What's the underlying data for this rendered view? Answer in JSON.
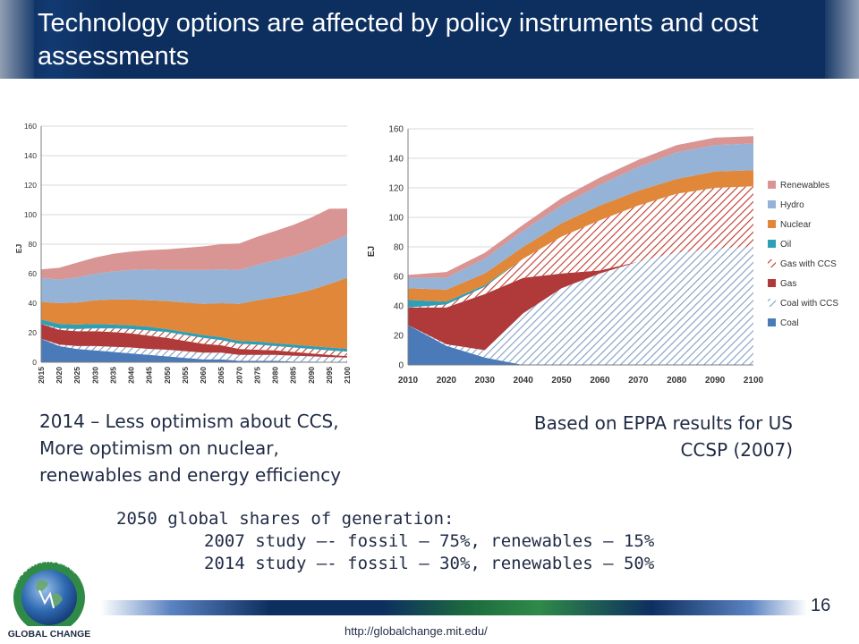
{
  "title": "Technology options are affected by policy instruments and cost assessments",
  "caption_left": [
    "2014 – Less optimism about CCS,",
    "More optimism on nuclear,",
    "renewables and energy efficiency"
  ],
  "caption_right": [
    "Based on EPPA results for US",
    "CCSP (2007)"
  ],
  "shares_heading": "2050 global shares of generation:",
  "shares_lines": [
    "2007 study –- fossil – 75%, renewables – 15%",
    "2014 study –- fossil – 30%, renewables – 50%"
  ],
  "page_number": "16",
  "footer_url": "http://globalchange.mit.edu/",
  "logo": {
    "top_text": "MIT JOINT PROGRAM",
    "bottom_text": "GLOBAL CHANGE"
  },
  "colors": {
    "title_bg": "#0d2f60",
    "Renewables": "#d99594",
    "Hydro": "#95b3d7",
    "Nuclear": "#e0873a",
    "Oil": "#2f9fb5",
    "Gas with CCS": "#c0392b",
    "Gas": "#b03a3a",
    "Coal with CCS": "#7f9ec4",
    "Coal": "#4a7ab8"
  },
  "chart_data": [
    {
      "type": "area",
      "stacked": true,
      "ylabel": "EJ",
      "ylim": [
        0,
        160
      ],
      "yticks": [
        0,
        20,
        40,
        60,
        80,
        100,
        120,
        140,
        160
      ],
      "x": [
        2015,
        2020,
        2025,
        2030,
        2035,
        2040,
        2045,
        2050,
        2055,
        2060,
        2065,
        2070,
        2075,
        2080,
        2085,
        2090,
        2095,
        2100
      ],
      "legend": "none",
      "series": [
        {
          "name": "Coal",
          "pattern": "solid",
          "color": "#4a7ab8",
          "values": [
            16,
            11,
            9,
            8,
            7,
            6,
            5,
            4,
            3,
            2,
            2,
            1,
            1,
            1,
            0.5,
            0.5,
            0.3,
            0.2
          ]
        },
        {
          "name": "Coal with CCS",
          "pattern": "hatched",
          "color": "#7f9ec4",
          "values": [
            0,
            1,
            2,
            3,
            3.5,
            4,
            4,
            4.5,
            4.5,
            4.5,
            4.5,
            4,
            4,
            4,
            4,
            3.5,
            3.2,
            3
          ]
        },
        {
          "name": "Gas",
          "pattern": "solid",
          "color": "#b03a3a",
          "values": [
            10,
            10,
            10,
            10,
            10,
            9.5,
            9,
            8,
            7,
            6,
            5,
            4,
            3.5,
            3,
            2.5,
            2,
            1.5,
            1
          ]
        },
        {
          "name": "Gas with CCS",
          "pattern": "hatched",
          "color": "#c0392b",
          "values": [
            0,
            1,
            1.5,
            2,
            2.5,
            3,
            3.5,
            4,
            4,
            4,
            3.5,
            3.5,
            3.5,
            3,
            3,
            3,
            3,
            3
          ]
        },
        {
          "name": "Oil",
          "pattern": "solid",
          "color": "#2f9fb5",
          "values": [
            3,
            3,
            3,
            3,
            2.5,
            2.5,
            2.5,
            2,
            2,
            2,
            2,
            2,
            2,
            2,
            2,
            2,
            2,
            2
          ]
        },
        {
          "name": "Nuclear",
          "pattern": "solid",
          "color": "#e0873a",
          "values": [
            12,
            14,
            15,
            16,
            17,
            17.5,
            18,
            19,
            20,
            21,
            23,
            25,
            28,
            31,
            34,
            38,
            43,
            48
          ]
        },
        {
          "name": "Hydro",
          "pattern": "solid",
          "color": "#95b3d7",
          "values": [
            16,
            16,
            17,
            18,
            19,
            20,
            21,
            21,
            22,
            23,
            23,
            23,
            24,
            25,
            26,
            27,
            28,
            29
          ]
        },
        {
          "name": "Renewables",
          "pattern": "solid",
          "color": "#d99594",
          "values": [
            6,
            8,
            10,
            11,
            12,
            12.5,
            13,
            14,
            15,
            16,
            17,
            18,
            19,
            20,
            21,
            22,
            23,
            18
          ]
        }
      ]
    },
    {
      "type": "area",
      "stacked": true,
      "ylabel": "EJ",
      "ylim": [
        0,
        160
      ],
      "yticks": [
        0,
        20,
        40,
        60,
        80,
        100,
        120,
        140,
        160
      ],
      "x": [
        2010,
        2020,
        2030,
        2040,
        2050,
        2060,
        2070,
        2080,
        2090,
        2100
      ],
      "legend": "right",
      "legend_order": [
        "Renewables",
        "Hydro",
        "Nuclear",
        "Oil",
        "Gas with CCS",
        "Gas",
        "Coal with CCS",
        "Coal"
      ],
      "series": [
        {
          "name": "Coal",
          "pattern": "solid",
          "color": "#4a7ab8",
          "values": [
            27,
            13,
            5,
            0,
            0,
            0,
            0,
            0,
            0,
            0
          ]
        },
        {
          "name": "Coal with CCS",
          "pattern": "hatched",
          "color": "#7f9ec4",
          "values": [
            0,
            1,
            5,
            35,
            52,
            62,
            70,
            76,
            79,
            80
          ]
        },
        {
          "name": "Gas",
          "pattern": "solid",
          "color": "#b03a3a",
          "values": [
            12,
            25,
            38,
            24,
            10,
            2,
            0,
            0,
            0,
            0
          ]
        },
        {
          "name": "Gas with CCS",
          "pattern": "hatched",
          "color": "#c0392b",
          "values": [
            0,
            2,
            5,
            13,
            25,
            34,
            38,
            40,
            41,
            41
          ]
        },
        {
          "name": "Oil",
          "pattern": "solid",
          "color": "#2f9fb5",
          "values": [
            5,
            2,
            1,
            0,
            0,
            0,
            0,
            0,
            0,
            0
          ]
        },
        {
          "name": "Nuclear",
          "pattern": "solid",
          "color": "#e0873a",
          "values": [
            8,
            8,
            8,
            8,
            9,
            10,
            10,
            10,
            11,
            11
          ]
        },
        {
          "name": "Hydro",
          "pattern": "solid",
          "color": "#95b3d7",
          "values": [
            7,
            8,
            10,
            11,
            12,
            14,
            16,
            18,
            18,
            18
          ]
        },
        {
          "name": "Renewables",
          "pattern": "solid",
          "color": "#d99594",
          "values": [
            2,
            4,
            4,
            4,
            5,
            5,
            5,
            5,
            5,
            5
          ]
        }
      ]
    }
  ]
}
